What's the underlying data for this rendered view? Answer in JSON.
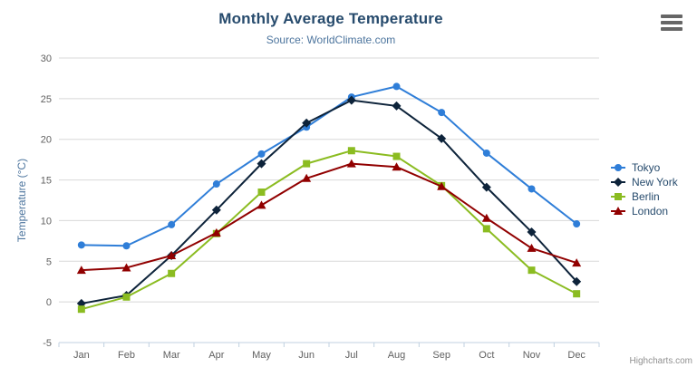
{
  "header": {
    "title": "Monthly Average Temperature",
    "subtitle": "Source: WorldClimate.com"
  },
  "credits": {
    "label": "Highcharts.com"
  },
  "context_menu": {
    "icon": "hamburger-menu-icon"
  },
  "colors": {
    "title": "#274b6d",
    "subtitle": "#4d759e",
    "axis_title": "#4d759e",
    "tick_label": "#606060",
    "grid_line": "#d8d8d8",
    "axis_line": "#c0d0e0",
    "legend_text": "#274b6d",
    "credits_text": "#909090"
  },
  "chart_data": {
    "type": "line",
    "title": "Monthly Average Temperature",
    "subtitle": "Source: WorldClimate.com",
    "xlabel": "",
    "ylabel": "Temperature (°C)",
    "ylim": [
      -5,
      30
    ],
    "ytick_step": 5,
    "yticks": [
      -5,
      0,
      5,
      10,
      15,
      20,
      25,
      30
    ],
    "grid": true,
    "legend_position": "right",
    "categories": [
      "Jan",
      "Feb",
      "Mar",
      "Apr",
      "May",
      "Jun",
      "Jul",
      "Aug",
      "Sep",
      "Oct",
      "Nov",
      "Dec"
    ],
    "series": [
      {
        "name": "Tokyo",
        "color": "#2f7ed8",
        "marker": "circle",
        "values": [
          7.0,
          6.9,
          9.5,
          14.5,
          18.2,
          21.5,
          25.2,
          26.5,
          23.3,
          18.3,
          13.9,
          9.6
        ]
      },
      {
        "name": "New York",
        "color": "#0d233a",
        "marker": "diamond",
        "values": [
          -0.2,
          0.8,
          5.7,
          11.3,
          17.0,
          22.0,
          24.8,
          24.1,
          20.1,
          14.1,
          8.6,
          2.5
        ]
      },
      {
        "name": "Berlin",
        "color": "#8bbc21",
        "marker": "square",
        "values": [
          -0.9,
          0.6,
          3.5,
          8.4,
          13.5,
          17.0,
          18.6,
          17.9,
          14.3,
          9.0,
          3.9,
          1.0
        ]
      },
      {
        "name": "London",
        "color": "#910000",
        "marker": "triangle",
        "values": [
          3.9,
          4.2,
          5.7,
          8.5,
          11.9,
          15.2,
          17.0,
          16.6,
          14.2,
          10.3,
          6.6,
          4.8
        ]
      }
    ]
  }
}
